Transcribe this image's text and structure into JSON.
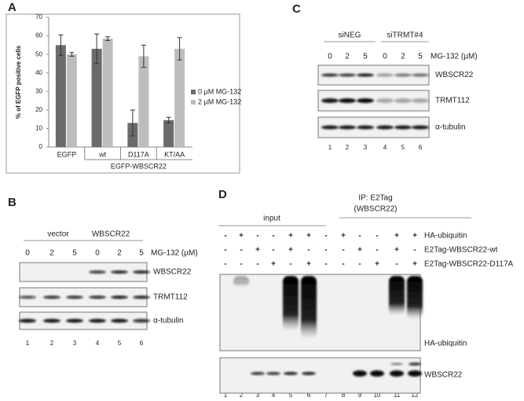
{
  "chart_data": {
    "type": "bar",
    "panel": "A",
    "y_label": "% of EGFP positive cells",
    "categories": [
      "EGFP",
      "wt",
      "D117A",
      "KT/AA"
    ],
    "group_label": "EGFP-WBSCR22",
    "series": [
      {
        "name": "0 µM MG-132",
        "color": "#6b6b6b",
        "values": [
          55,
          53,
          13,
          14.5
        ],
        "errors": [
          5.5,
          8,
          7,
          1.5
        ]
      },
      {
        "name": "2 µM MG-132",
        "color": "#bdbdbd",
        "values": [
          50,
          58.5,
          49,
          53
        ],
        "errors": [
          1,
          1,
          6,
          6
        ]
      }
    ],
    "ylim": [
      0,
      70
    ],
    "yticks": [
      0,
      10,
      20,
      30,
      40,
      50,
      60,
      70
    ],
    "grid": false
  },
  "panel_b": {
    "letter": "B",
    "groups": [
      "vector",
      "WBSCR22"
    ],
    "doses": [
      "0",
      "2",
      "5",
      "0",
      "2",
      "5"
    ],
    "dose_label": "MG-132 (µM)",
    "blots": [
      "WBSCR22",
      "TRMT112",
      "α-tubulin"
    ],
    "lanes": [
      "1",
      "2",
      "3",
      "4",
      "5",
      "6"
    ]
  },
  "panel_c": {
    "letter": "C",
    "groups": [
      "siNEG",
      "siTRMT#4"
    ],
    "doses": [
      "0",
      "2",
      "5",
      "0",
      "2",
      "5"
    ],
    "dose_label": "MG-132 (µM)",
    "blots": [
      "WBSCR22",
      "TRMT112",
      "α-tubulin"
    ],
    "lanes": [
      "1",
      "2",
      "3",
      "4",
      "5",
      "6"
    ]
  },
  "panel_d": {
    "letter": "D",
    "input_label": "input",
    "ip_label": [
      "IP: E2Tag",
      "(WBSCR22)"
    ],
    "rows": [
      {
        "label": "HA-ubiquitin",
        "signs": [
          "-",
          "+",
          "-",
          "-",
          "+",
          "+",
          "-",
          "+",
          "-",
          "-",
          "+",
          "+"
        ]
      },
      {
        "label": "E2Tag-WBSCR22-wt",
        "signs": [
          "-",
          "-",
          "+",
          "-",
          "+",
          "-",
          "-",
          "-",
          "+",
          "-",
          "+",
          "-"
        ]
      },
      {
        "label": "E2Tag-WBSCR22-D117A",
        "signs": [
          "-",
          "-",
          "-",
          "+",
          "-",
          "+",
          "-",
          "-",
          "-",
          "+",
          "-",
          "+"
        ]
      }
    ],
    "blots": [
      "HA-ubiquitin",
      "WBSCR22"
    ],
    "lanes": [
      "1",
      "2",
      "3",
      "4",
      "5",
      "6",
      "7",
      "8",
      "9",
      "10",
      "11",
      "12"
    ]
  }
}
